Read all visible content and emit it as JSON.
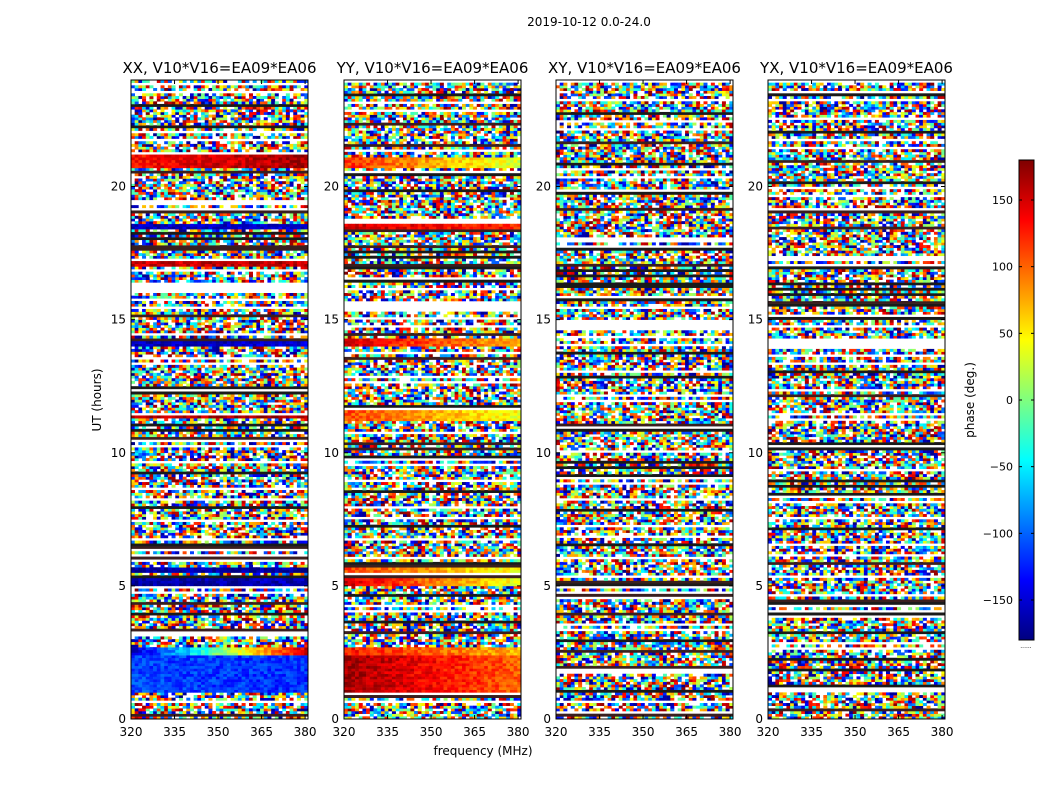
{
  "figure": {
    "suptitle": "2019-10-12 0.0-24.0"
  },
  "chart_data": {
    "type": "heatmap",
    "xlabel": "frequency (MHz)",
    "ylabel": "UT (hours)",
    "xlim": [
      320,
      381
    ],
    "ylim": [
      0,
      24
    ],
    "xticks": [
      320,
      335,
      350,
      365,
      380
    ],
    "yticks": [
      0,
      5,
      10,
      15,
      20
    ],
    "colorbar": {
      "label": "phase (deg.)",
      "range": [
        -180,
        180
      ],
      "ticks": [
        -150,
        -100,
        -50,
        0,
        50,
        100,
        150
      ],
      "tick_labels": [
        "−150",
        "−100",
        "−50",
        "0",
        "50",
        "100",
        "150"
      ],
      "colormap": [
        "#00007f",
        "#0000ff",
        "#007fff",
        "#00ffff",
        "#7fff7f",
        "#ffff00",
        "#ff7f00",
        "#ff0000",
        "#7f0000"
      ],
      "extra_label": "......"
    },
    "panels": [
      {
        "title": "XX, V10*V16=EA09*EA06",
        "coherent_bands": [
          {
            "t0": 20.75,
            "t1": 21.15,
            "phase_start": 130,
            "phase_end": 170
          },
          {
            "t0": 18.45,
            "t1": 18.55,
            "phase_start": -160,
            "phase_end": -150
          },
          {
            "t0": 17.0,
            "t1": 17.15,
            "phase_start": 150,
            "phase_end": 160
          },
          {
            "t0": 14.05,
            "t1": 14.15,
            "phase_start": -160,
            "phase_end": -150
          },
          {
            "t0": 11.3,
            "t1": 11.45,
            "phase_start": 160,
            "phase_end": 170
          },
          {
            "t0": 5.05,
            "t1": 5.25,
            "phase_start": -170,
            "phase_end": -160
          },
          {
            "t0": 5.55,
            "t1": 5.65,
            "phase_start": -170,
            "phase_end": -170
          },
          {
            "t0": 2.45,
            "t1": 2.65,
            "phase_start": -155,
            "phase_end": 150
          },
          {
            "t0": 1.0,
            "t1": 2.45,
            "phase_start": -110,
            "phase_end": -120
          }
        ]
      },
      {
        "title": "YY, V10*V16=EA09*EA06",
        "coherent_bands": [
          {
            "t0": 20.7,
            "t1": 21.1,
            "phase_start": 120,
            "phase_end": 30
          },
          {
            "t0": 18.4,
            "t1": 18.6,
            "phase_start": 150,
            "phase_end": 120
          },
          {
            "t0": 14.05,
            "t1": 14.3,
            "phase_start": 150,
            "phase_end": 70
          },
          {
            "t0": 11.2,
            "t1": 11.6,
            "phase_start": 110,
            "phase_end": 40
          },
          {
            "t0": 5.05,
            "t1": 5.3,
            "phase_start": 150,
            "phase_end": 40
          },
          {
            "t0": 5.55,
            "t1": 5.7,
            "phase_start": 110,
            "phase_end": 40
          },
          {
            "t0": 2.4,
            "t1": 2.7,
            "phase_start": 130,
            "phase_end": 70
          },
          {
            "t0": 1.0,
            "t1": 2.4,
            "phase_start": 170,
            "phase_end": 100
          }
        ]
      },
      {
        "title": "XY, V10*V16=EA09*EA06",
        "coherent_bands": []
      },
      {
        "title": "YX, V10*V16=EA09*EA06",
        "coherent_bands": []
      }
    ]
  }
}
